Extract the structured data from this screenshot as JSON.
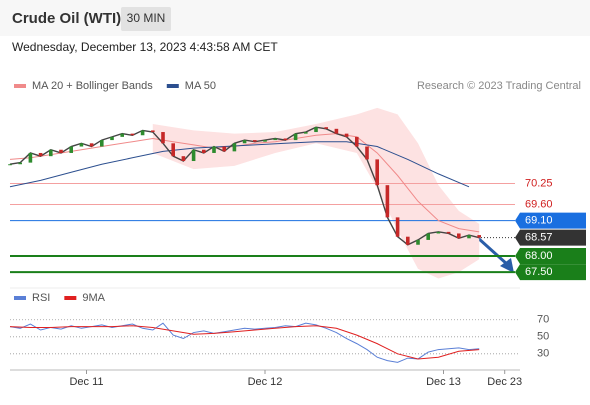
{
  "header": {
    "title": "Crude Oil (WTI)",
    "timeframe": "30 MIN",
    "date": "Wednesday, December 13, 2023 4:43:58 AM CET"
  },
  "chart_data": [
    {
      "type": "line",
      "source": "Research © 2023 Trading Central",
      "xlim": [
        0,
        100
      ],
      "ylim": [
        67.1,
        73.0
      ],
      "price": {
        "color": "#444444",
        "x": [
          0,
          2,
          4,
          6,
          8,
          10,
          12,
          14,
          16,
          18,
          20,
          22,
          24,
          26,
          28,
          30,
          32,
          34,
          36,
          38,
          40,
          42,
          44,
          46,
          48,
          50,
          52,
          54,
          56,
          58,
          60,
          62,
          64,
          66,
          68,
          70,
          72,
          74,
          76,
          78,
          80,
          82,
          84,
          86,
          88,
          90,
          92
        ],
        "values": [
          70.85,
          70.9,
          71.2,
          71.1,
          71.3,
          71.2,
          71.4,
          71.5,
          71.4,
          71.6,
          71.7,
          71.8,
          71.75,
          71.9,
          71.85,
          71.5,
          71.1,
          70.95,
          71.3,
          71.2,
          71.4,
          71.25,
          71.5,
          71.6,
          71.55,
          71.6,
          71.65,
          71.6,
          71.8,
          71.85,
          72.0,
          71.95,
          71.8,
          71.7,
          71.4,
          71.0,
          70.2,
          69.2,
          68.6,
          68.35,
          68.5,
          68.7,
          68.75,
          68.7,
          68.55,
          68.65,
          68.57
        ]
      },
      "series": [
        {
          "name": "MA 20 + Bollinger Bands",
          "color": "#f08a8a",
          "x": [
            0,
            4,
            8,
            12,
            16,
            20,
            24,
            28,
            32,
            36,
            40,
            44,
            48,
            52,
            56,
            60,
            64,
            68,
            72,
            76,
            80,
            84,
            88,
            92
          ],
          "values": [
            71.0,
            71.05,
            71.15,
            71.25,
            71.35,
            71.45,
            71.55,
            71.65,
            71.55,
            71.45,
            71.35,
            71.4,
            71.5,
            71.55,
            71.65,
            71.75,
            71.8,
            71.7,
            71.2,
            70.5,
            69.7,
            69.1,
            68.85,
            68.75
          ],
          "band": {
            "color": "#fde2e2",
            "x": [
              28,
              36,
              44,
              52,
              60,
              68,
              72,
              76,
              80,
              84,
              88,
              92
            ],
            "upper": [
              72.1,
              71.9,
              71.8,
              71.85,
              72.1,
              72.4,
              72.6,
              72.4,
              71.5,
              70.2,
              69.4,
              69.0
            ],
            "lower": [
              71.2,
              70.7,
              70.8,
              71.2,
              71.5,
              71.2,
              70.1,
              68.8,
              67.6,
              67.3,
              67.5,
              67.9
            ]
          }
        },
        {
          "name": "MA 50",
          "color": "#2c4f8f",
          "x": [
            0,
            6,
            12,
            18,
            24,
            30,
            36,
            42,
            48,
            54,
            60,
            66,
            72,
            78,
            84,
            90
          ],
          "values": [
            70.15,
            70.35,
            70.6,
            70.85,
            71.05,
            71.25,
            71.35,
            71.4,
            71.45,
            71.5,
            71.55,
            71.55,
            71.4,
            71.0,
            70.55,
            70.15
          ]
        }
      ],
      "levels": [
        {
          "value": 70.25,
          "color": "#f4a0a0",
          "text_color": "#d02020",
          "badge": false
        },
        {
          "value": {
            "value": 69.6,
            "label": "69.60"
          },
          "color": "#f4a0a0",
          "text_color": "#d02020",
          "badge": false
        },
        {
          "value": {
            "value": 69.1,
            "label": "69.10"
          },
          "color": "#1a6fe0",
          "text_color": "#ffffff",
          "badge": true
        },
        {
          "value": 68.57,
          "color": "#333333",
          "text_color": "#ffffff",
          "badge": true,
          "dotted": true
        },
        {
          "value": {
            "value": 68.0,
            "label": "68.00"
          },
          "color": "#1a7f1a",
          "text_color": "#ffffff",
          "badge": true
        },
        {
          "value": {
            "value": 67.5,
            "label": "67.50"
          },
          "color": "#1a7f1a",
          "text_color": "#ffffff",
          "badge": true
        }
      ]
    },
    {
      "type": "line",
      "xlim": [
        0,
        100
      ],
      "ylim": [
        11,
        105
      ],
      "yticks": [
        70,
        50,
        30
      ],
      "xticks": [
        {
          "value": 15,
          "label": "Dec 11"
        },
        {
          "value": 50,
          "label": "Dec 12"
        },
        {
          "value": 85,
          "label": "Dec 13"
        },
        {
          "value": 97,
          "label": "Dec 23"
        }
      ],
      "series": [
        {
          "name": "RSI",
          "color": "#5a7fd6",
          "x": [
            0,
            2,
            4,
            6,
            8,
            10,
            12,
            14,
            16,
            18,
            20,
            22,
            24,
            26,
            28,
            30,
            32,
            34,
            36,
            38,
            40,
            42,
            44,
            46,
            48,
            50,
            52,
            54,
            56,
            58,
            60,
            62,
            64,
            66,
            68,
            70,
            72,
            74,
            76,
            78,
            80,
            82,
            84,
            86,
            88,
            90,
            92
          ],
          "values": [
            62,
            60,
            65,
            58,
            61,
            59,
            63,
            60,
            62,
            64,
            61,
            63,
            65,
            60,
            58,
            66,
            52,
            48,
            55,
            57,
            54,
            56,
            58,
            60,
            59,
            60,
            61,
            63,
            62,
            66,
            64,
            60,
            55,
            48,
            42,
            35,
            26,
            22,
            20,
            25,
            24,
            32,
            35,
            36,
            37,
            35,
            36
          ]
        },
        {
          "name": "9MA",
          "color": "#e02020",
          "x": [
            0,
            4,
            8,
            12,
            16,
            20,
            24,
            28,
            32,
            36,
            40,
            44,
            48,
            52,
            56,
            60,
            64,
            68,
            72,
            76,
            80,
            84,
            88,
            92
          ],
          "values": [
            62,
            61,
            61,
            62,
            62,
            62,
            63,
            61,
            57,
            53,
            54,
            56,
            58,
            60,
            62,
            63,
            60,
            52,
            42,
            30,
            24,
            26,
            33,
            35
          ]
        }
      ]
    }
  ]
}
